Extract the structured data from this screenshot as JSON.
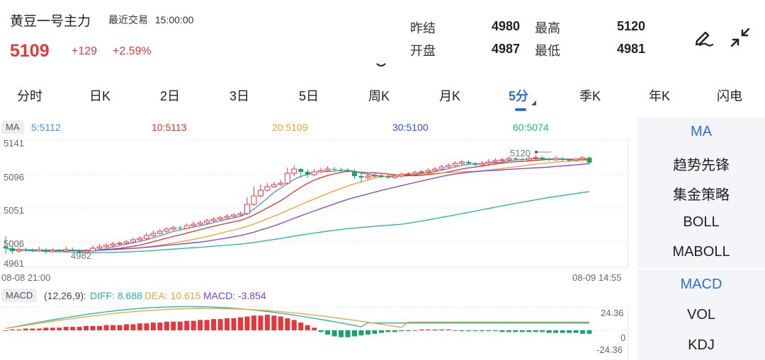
{
  "header": {
    "title": "黄豆一号主力",
    "trade_label": "最近交易",
    "trade_time": "15:00:00",
    "price": "5109",
    "change": "+129",
    "change_pct": "+2.59%"
  },
  "quote": {
    "prev_settle_label": "昨结",
    "prev_settle": "4980",
    "high_label": "最高",
    "high": "5120",
    "open_label": "开盘",
    "open": "4987",
    "low_label": "最低",
    "low": "4981"
  },
  "tabs": [
    "分时",
    "日K",
    "2日",
    "3日",
    "5日",
    "周K",
    "月K",
    "5分",
    "季K",
    "年K",
    "闪电"
  ],
  "active_tab": "5分",
  "ma": {
    "badge": "MA",
    "ma5": "5:5112",
    "ma10": "10:5113",
    "ma20": "20:5109",
    "ma30": "30:5100",
    "ma60": "60:5074"
  },
  "colors": {
    "up": "#e4393c",
    "down": "#1aa36f",
    "ma5": "#4a90d9",
    "ma10": "#d9342b",
    "ma20": "#f0a030",
    "ma30": "#7b3fd6",
    "ma60": "#1fb3a6",
    "accent": "#2a6fdb"
  },
  "axes": {
    "y_top": "5141",
    "y_mid1": "5096",
    "y_mid2": "5051",
    "y_bottom": "4961",
    "y_partial": "5006",
    "start_time": "08-08 21:00",
    "end_time": "08-09 14:55",
    "high_mark": "5120",
    "low_mark": "4982"
  },
  "macd": {
    "badge": "MACD",
    "params": "(12,26,9):",
    "diff": "DIFF: 8.688",
    "dea": "DEA: 10.615",
    "macd": "MACD: -3.854",
    "axis_top": "24.36",
    "axis_zero": "0",
    "axis_bottom": "-24.36"
  },
  "sidebar_top": [
    "MA",
    "趋势先锋",
    "集金策略",
    "BOLL",
    "MABOLL"
  ],
  "sidebar_bottom": [
    "MACD",
    "VOL",
    "KDJ"
  ],
  "icons": [
    "pen-icon",
    "collapse-icon",
    "chevron-down-icon"
  ],
  "chart_data": {
    "type": "candlestick",
    "y_range": [
      4961,
      5141
    ],
    "candles": [
      [
        4990,
        4988,
        5005,
        4980
      ],
      [
        4988,
        4984,
        4992,
        4980
      ],
      [
        4984,
        4986,
        4990,
        4982
      ],
      [
        4986,
        4985,
        4989,
        4983
      ],
      [
        4985,
        4984,
        4988,
        4982
      ],
      [
        4984,
        4986,
        4990,
        4983
      ],
      [
        4986,
        4983,
        4988,
        4980
      ],
      [
        4983,
        4985,
        4988,
        4982
      ],
      [
        4985,
        4984,
        4987,
        4982
      ],
      [
        4984,
        4986,
        4990,
        4983
      ],
      [
        4986,
        4985,
        4989,
        4983
      ],
      [
        4985,
        4982,
        4987,
        4981
      ],
      [
        4982,
        4984,
        4987,
        4981
      ],
      [
        4984,
        4988,
        4992,
        4983
      ],
      [
        4988,
        4990,
        4994,
        4986
      ],
      [
        4990,
        4992,
        4995,
        4988
      ],
      [
        4992,
        4994,
        4997,
        4990
      ],
      [
        4994,
        4995,
        4998,
        4992
      ],
      [
        4995,
        4997,
        5000,
        4993
      ],
      [
        4997,
        5000,
        5003,
        4995
      ],
      [
        5000,
        5002,
        5005,
        4998
      ],
      [
        5002,
        5006,
        5010,
        5000
      ],
      [
        5006,
        5009,
        5013,
        5004
      ],
      [
        5009,
        5012,
        5015,
        5007
      ],
      [
        5012,
        5015,
        5018,
        5010
      ],
      [
        5015,
        5017,
        5020,
        5013
      ],
      [
        5017,
        5016,
        5020,
        5014
      ],
      [
        5016,
        5020,
        5023,
        5015
      ],
      [
        5020,
        5022,
        5026,
        5018
      ],
      [
        5022,
        5024,
        5027,
        5020
      ],
      [
        5024,
        5027,
        5030,
        5022
      ],
      [
        5027,
        5029,
        5032,
        5025
      ],
      [
        5029,
        5031,
        5034,
        5027
      ],
      [
        5031,
        5033,
        5036,
        5029
      ],
      [
        5033,
        5035,
        5038,
        5031
      ],
      [
        5035,
        5037,
        5040,
        5033
      ],
      [
        5037,
        5050,
        5060,
        5035
      ],
      [
        5050,
        5062,
        5075,
        5048
      ],
      [
        5062,
        5070,
        5078,
        5060
      ],
      [
        5070,
        5075,
        5080,
        5068
      ],
      [
        5075,
        5078,
        5082,
        5073
      ],
      [
        5078,
        5080,
        5085,
        5076
      ],
      [
        5080,
        5094,
        5102,
        5078
      ],
      [
        5094,
        5100,
        5105,
        5090
      ],
      [
        5100,
        5096,
        5102,
        5088
      ],
      [
        5096,
        5092,
        5100,
        5088
      ],
      [
        5092,
        5096,
        5100,
        5090
      ],
      [
        5096,
        5098,
        5102,
        5094
      ],
      [
        5098,
        5100,
        5104,
        5096
      ],
      [
        5100,
        5099,
        5103,
        5097
      ],
      [
        5099,
        5098,
        5102,
        5096
      ],
      [
        5098,
        5097,
        5101,
        5095
      ],
      [
        5097,
        5090,
        5100,
        5086
      ],
      [
        5090,
        5088,
        5094,
        5080
      ],
      [
        5088,
        5090,
        5094,
        5085
      ],
      [
        5090,
        5091,
        5095,
        5088
      ],
      [
        5091,
        5089,
        5094,
        5087
      ],
      [
        5089,
        5088,
        5092,
        5086
      ],
      [
        5088,
        5090,
        5093,
        5086
      ],
      [
        5090,
        5092,
        5095,
        5088
      ],
      [
        5092,
        5093,
        5096,
        5090
      ],
      [
        5093,
        5095,
        5098,
        5091
      ],
      [
        5095,
        5096,
        5099,
        5093
      ],
      [
        5096,
        5098,
        5101,
        5094
      ],
      [
        5098,
        5100,
        5103,
        5096
      ],
      [
        5100,
        5103,
        5106,
        5098
      ],
      [
        5103,
        5105,
        5108,
        5101
      ],
      [
        5105,
        5108,
        5111,
        5103
      ],
      [
        5108,
        5110,
        5113,
        5106
      ],
      [
        5110,
        5108,
        5112,
        5106
      ],
      [
        5108,
        5106,
        5110,
        5104
      ],
      [
        5106,
        5108,
        5111,
        5104
      ],
      [
        5108,
        5110,
        5114,
        5106
      ],
      [
        5110,
        5112,
        5115,
        5108
      ],
      [
        5112,
        5113,
        5116,
        5110
      ],
      [
        5113,
        5115,
        5118,
        5111
      ],
      [
        5115,
        5114,
        5117,
        5112
      ],
      [
        5114,
        5113,
        5116,
        5111
      ],
      [
        5113,
        5115,
        5118,
        5112
      ],
      [
        5115,
        5116,
        5120,
        5113
      ],
      [
        5116,
        5114,
        5118,
        5112
      ],
      [
        5114,
        5113,
        5116,
        5111
      ],
      [
        5113,
        5115,
        5118,
        5112
      ],
      [
        5115,
        5113,
        5117,
        5111
      ],
      [
        5113,
        5112,
        5115,
        5110
      ],
      [
        5112,
        5114,
        5116,
        5111
      ],
      [
        5114,
        5116,
        5118,
        5112
      ],
      [
        5116,
        5109,
        5118,
        5106
      ]
    ],
    "macd_bars": [
      0,
      1,
      1,
      2,
      2,
      2,
      3,
      3,
      3,
      4,
      4,
      4,
      5,
      5,
      5,
      6,
      6,
      6,
      7,
      7,
      8,
      8,
      9,
      9,
      10,
      10,
      10,
      11,
      11,
      12,
      12,
      13,
      13,
      14,
      14,
      15,
      16,
      17,
      17,
      18,
      17,
      16,
      14,
      12,
      9,
      6,
      3,
      -2,
      -5,
      -7,
      -8,
      -8,
      -7,
      -6,
      -5,
      -4,
      -3,
      -2,
      -2,
      -1,
      -1,
      0,
      1,
      1,
      1,
      1,
      1,
      0,
      -1,
      -1,
      -1,
      -1,
      -1,
      -1,
      -2,
      -2,
      -2,
      -2,
      -2,
      -2,
      -2,
      -3,
      -3,
      -3,
      -3,
      -3,
      -4,
      -4
    ]
  }
}
